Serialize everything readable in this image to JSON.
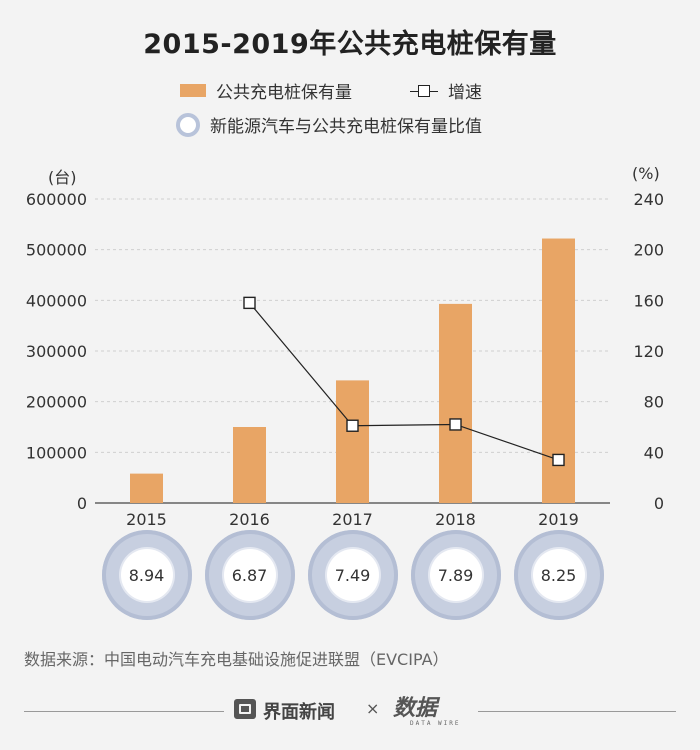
{
  "chart_data": {
    "type": "bar",
    "title": "2015-2019年公共充电桩保有量",
    "categories": [
      "2015",
      "2016",
      "2017",
      "2018",
      "2019"
    ],
    "series": [
      {
        "name": "公共充电桩保有量",
        "type": "bar",
        "axis": "left",
        "values": [
          58000,
          150000,
          242000,
          393000,
          522000
        ]
      },
      {
        "name": "增速",
        "type": "line",
        "axis": "right",
        "values": [
          null,
          158,
          61,
          62,
          34
        ]
      }
    ],
    "ratio_series": {
      "name": "新能源汽车与公共充电桩保有量比值",
      "values": [
        "8.94",
        "6.87",
        "7.49",
        "7.89",
        "8.25"
      ]
    },
    "y_left": {
      "unit": "(台)",
      "ylim": [
        0,
        600000
      ],
      "ticks": [
        "0",
        "100000",
        "200000",
        "300000",
        "400000",
        "500000",
        "600000"
      ]
    },
    "y_right": {
      "unit": "(%)",
      "ylim": [
        0,
        240
      ],
      "ticks": [
        "0",
        "40",
        "80",
        "120",
        "160",
        "200",
        "240"
      ]
    },
    "grid": true,
    "colors": {
      "bar": "#e8a565",
      "line": "#222222",
      "ring": "#c7cfe0"
    }
  },
  "legend": {
    "bar_label": "公共充电桩保有量",
    "line_label": "增速",
    "ratio_label": "新能源汽车与公共充电桩保有量比值"
  },
  "source": "数据来源：中国电动汽车充电基础设施促进联盟（EVCIPA）",
  "footer": {
    "brand": "界面新闻",
    "times": "×",
    "logo": "数据",
    "logo_sub": "DATA WIRE"
  }
}
